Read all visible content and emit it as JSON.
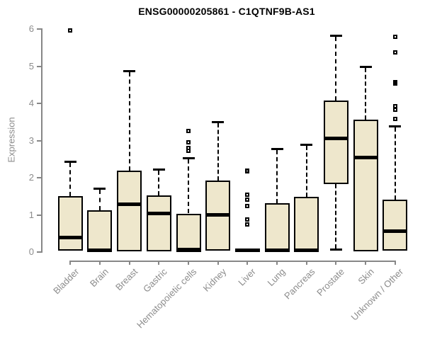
{
  "title": "ENSG00000205861 - C1QTNF9B-AS1",
  "chart_data": {
    "type": "boxplot",
    "title": "ENSG00000205861 - C1QTNF9B-AS1",
    "xlabel": "",
    "ylabel": "Expression",
    "ylim": [
      0,
      6
    ],
    "yticks": [
      0,
      1,
      2,
      3,
      4,
      5,
      6
    ],
    "grid": false,
    "legend": "none",
    "box_fill_color": "#eee7cc",
    "box_border_color": "#000000",
    "axis_color": "#878787",
    "tick_label_color": "#8c8c8c",
    "title_color": "#000000",
    "categories": [
      "Bladder",
      "Brain",
      "Breast",
      "Gastric",
      "Hematopoietic cells",
      "Kidney",
      "Liver",
      "Lung",
      "Pancreas",
      "Prostate",
      "Skin",
      "Unknown / Other"
    ],
    "boxes": [
      {
        "category": "Bladder",
        "whisker_low": 0.03,
        "q1": 0.03,
        "median": 0.38,
        "q3": 1.46,
        "whisker_high": 2.41,
        "outliers": [
          5.95
        ]
      },
      {
        "category": "Brain",
        "whisker_low": 0.0,
        "q1": 0.0,
        "median": 0.03,
        "q3": 1.09,
        "whisker_high": 1.7,
        "outliers": []
      },
      {
        "category": "Breast",
        "whisker_low": 0.02,
        "q1": 0.02,
        "median": 1.27,
        "q3": 2.16,
        "whisker_high": 4.85,
        "outliers": []
      },
      {
        "category": "Gastric",
        "whisker_low": 0.02,
        "q1": 0.02,
        "median": 1.02,
        "q3": 1.48,
        "whisker_high": 2.21,
        "outliers": []
      },
      {
        "category": "Hematopoietic cells",
        "whisker_low": 0.0,
        "q1": 0.0,
        "median": 0.04,
        "q3": 1.0,
        "whisker_high": 2.51,
        "outliers": [
          3.24,
          2.93,
          2.78,
          2.7
        ]
      },
      {
        "category": "Kidney",
        "whisker_low": 0.03,
        "q1": 0.03,
        "median": 0.99,
        "q3": 1.89,
        "whisker_high": 3.48,
        "outliers": []
      },
      {
        "category": "Liver",
        "whisker_low": 0.0,
        "q1": 0.0,
        "median": 0.03,
        "q3": 0.06,
        "whisker_high": 0.06,
        "outliers": [
          2.18,
          2.15,
          1.52,
          1.39,
          1.21,
          0.85,
          0.72
        ]
      },
      {
        "category": "Lung",
        "whisker_low": 0.0,
        "q1": 0.0,
        "median": 0.03,
        "q3": 1.28,
        "whisker_high": 2.76,
        "outliers": []
      },
      {
        "category": "Pancreas",
        "whisker_low": 0.0,
        "q1": 0.0,
        "median": 0.03,
        "q3": 1.44,
        "whisker_high": 2.87,
        "outliers": []
      },
      {
        "category": "Prostate",
        "whisker_low": 0.03,
        "q1": 1.82,
        "median": 3.04,
        "q3": 4.04,
        "whisker_high": 5.81,
        "outliers": []
      },
      {
        "category": "Skin",
        "whisker_low": 0.02,
        "q1": 0.02,
        "median": 2.53,
        "q3": 3.52,
        "whisker_high": 4.98,
        "outliers": []
      },
      {
        "category": "Unknown / Other",
        "whisker_low": 0.03,
        "q1": 0.03,
        "median": 0.55,
        "q3": 1.38,
        "whisker_high": 3.37,
        "outliers": [
          5.77,
          5.36,
          4.56,
          4.51,
          3.9,
          3.81,
          3.56
        ]
      }
    ]
  }
}
